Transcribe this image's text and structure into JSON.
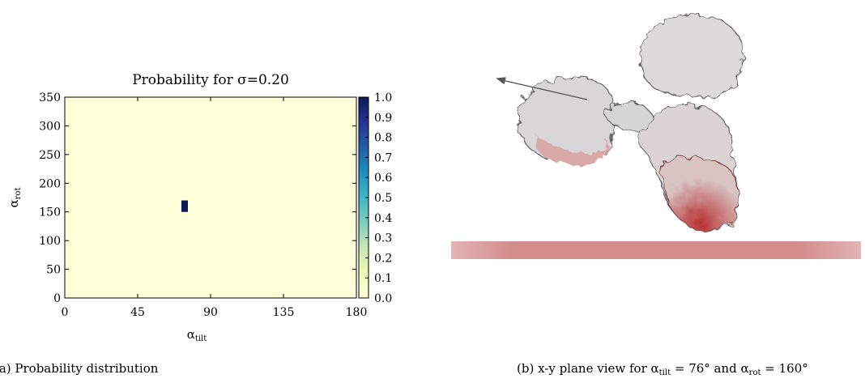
{
  "chart_data": {
    "type": "heatmap",
    "title": "Probability for σ=0.20",
    "x_label": {
      "symbol": "α",
      "subscript": "tilt"
    },
    "y_label": {
      "symbol": "α",
      "subscript": "rot"
    },
    "xlim": [
      0,
      180
    ],
    "xticks": [
      0,
      45,
      90,
      135,
      180
    ],
    "ylim": [
      0,
      350
    ],
    "yticks": [
      0,
      50,
      100,
      150,
      200,
      250,
      300,
      350
    ],
    "cells": [
      {
        "x": [
          72,
          76
        ],
        "y": [
          150,
          170
        ],
        "value": 1
      }
    ],
    "colorbar": {
      "lim": [
        0,
        1
      ],
      "ticks": [
        {
          "value": 0,
          "label": "0.0"
        },
        0.1,
        0.2,
        0.3,
        0.4,
        0.5,
        0.6,
        0.7,
        0.8,
        0.9,
        {
          "value": 1,
          "label": "1.0"
        }
      ],
      "colormap": [
        "#ffffd9",
        "#edf8b1",
        "#c7e9b4",
        "#7fcdbb",
        "#41b6c4",
        "#1d91c0",
        "#225ea8",
        "#253494",
        "#081d58"
      ]
    }
  },
  "captions": {
    "a": "(a) Probability distribution",
    "b": {
      "prefix": "(b) x-y plane view for ",
      "tilt_symbol": "α",
      "tilt_subscript": "tilt",
      "tilt_value": " = 76° and ",
      "rot_symbol": "α",
      "rot_subscript": "rot",
      "rot_value": " = 160°"
    }
  }
}
